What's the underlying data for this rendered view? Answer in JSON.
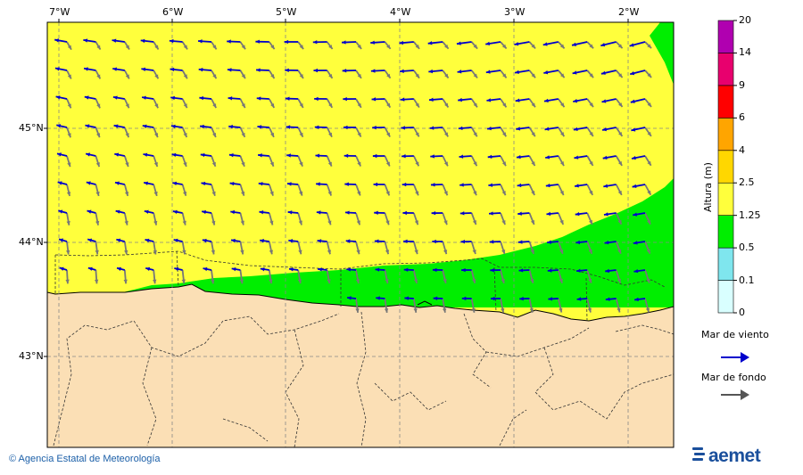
{
  "map": {
    "lon_ticks": [
      "7°W",
      "6°W",
      "5°W",
      "4°W",
      "3°W",
      "2°W"
    ],
    "lat_ticks": [
      "45°N",
      "44°N",
      "43°N"
    ]
  },
  "legend": {
    "title": "Altura (m)",
    "levels": [
      "0",
      "0.1",
      "0.5",
      "1.25",
      "2.5",
      "4",
      "6",
      "9",
      "14",
      "20"
    ],
    "colors": [
      "#d9ffff",
      "#7fe6ee",
      "#00ee00",
      "#ffff3c",
      "#ffd700",
      "#ffa500",
      "#ff0000",
      "#e8006e",
      "#b000b0"
    ],
    "wind_sea_label": "Mar de viento",
    "swell_label": "Mar de fondo",
    "wind_sea_color": "#0000cc",
    "swell_color": "#555555"
  },
  "colors": {
    "land": "#fbdfb5",
    "sea_1_25_to_2_5": "#ffff3c",
    "sea_0_5_to_1_25": "#00ee00"
  },
  "footer": {
    "credit": "© Agencia Estatal de Meteorología",
    "logo_text": "aemet"
  }
}
